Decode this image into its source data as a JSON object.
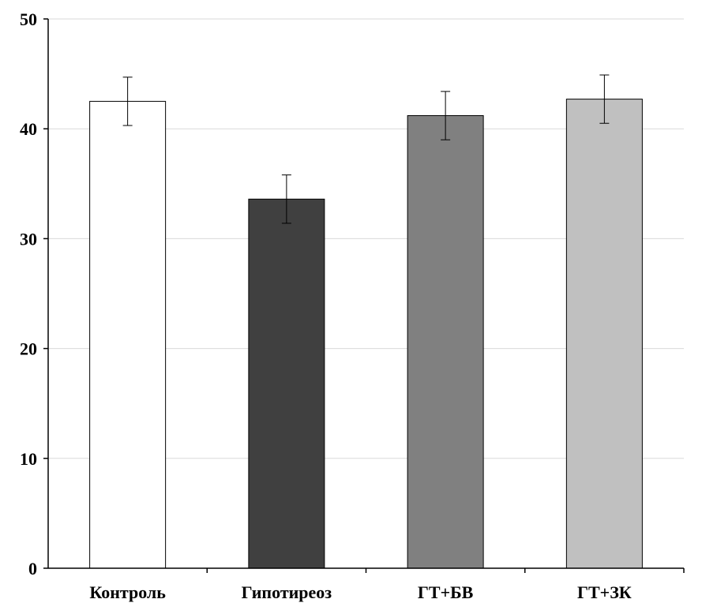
{
  "chart_data": {
    "type": "bar",
    "title": "",
    "xlabel": "",
    "ylabel": "",
    "categories": [
      "Контроль",
      "Гипотиреоз",
      "ГТ+БВ",
      "ГТ+ЗК"
    ],
    "values": [
      42.5,
      33.6,
      41.2,
      42.7
    ],
    "errors": [
      2.2,
      2.2,
      2.2,
      2.2
    ],
    "bar_colors": [
      "#ffffff",
      "#404040",
      "#808080",
      "#c0c0c0"
    ],
    "bar_edge_color": "#000000",
    "ylim": [
      0,
      50
    ],
    "yticks": [
      0,
      10,
      20,
      30,
      40,
      50
    ],
    "ytick_labels": [
      "0",
      "10",
      "20",
      "30",
      "40",
      "50"
    ],
    "grid": "horizontal",
    "grid_color": "#d9d9d9",
    "legend": "none"
  }
}
